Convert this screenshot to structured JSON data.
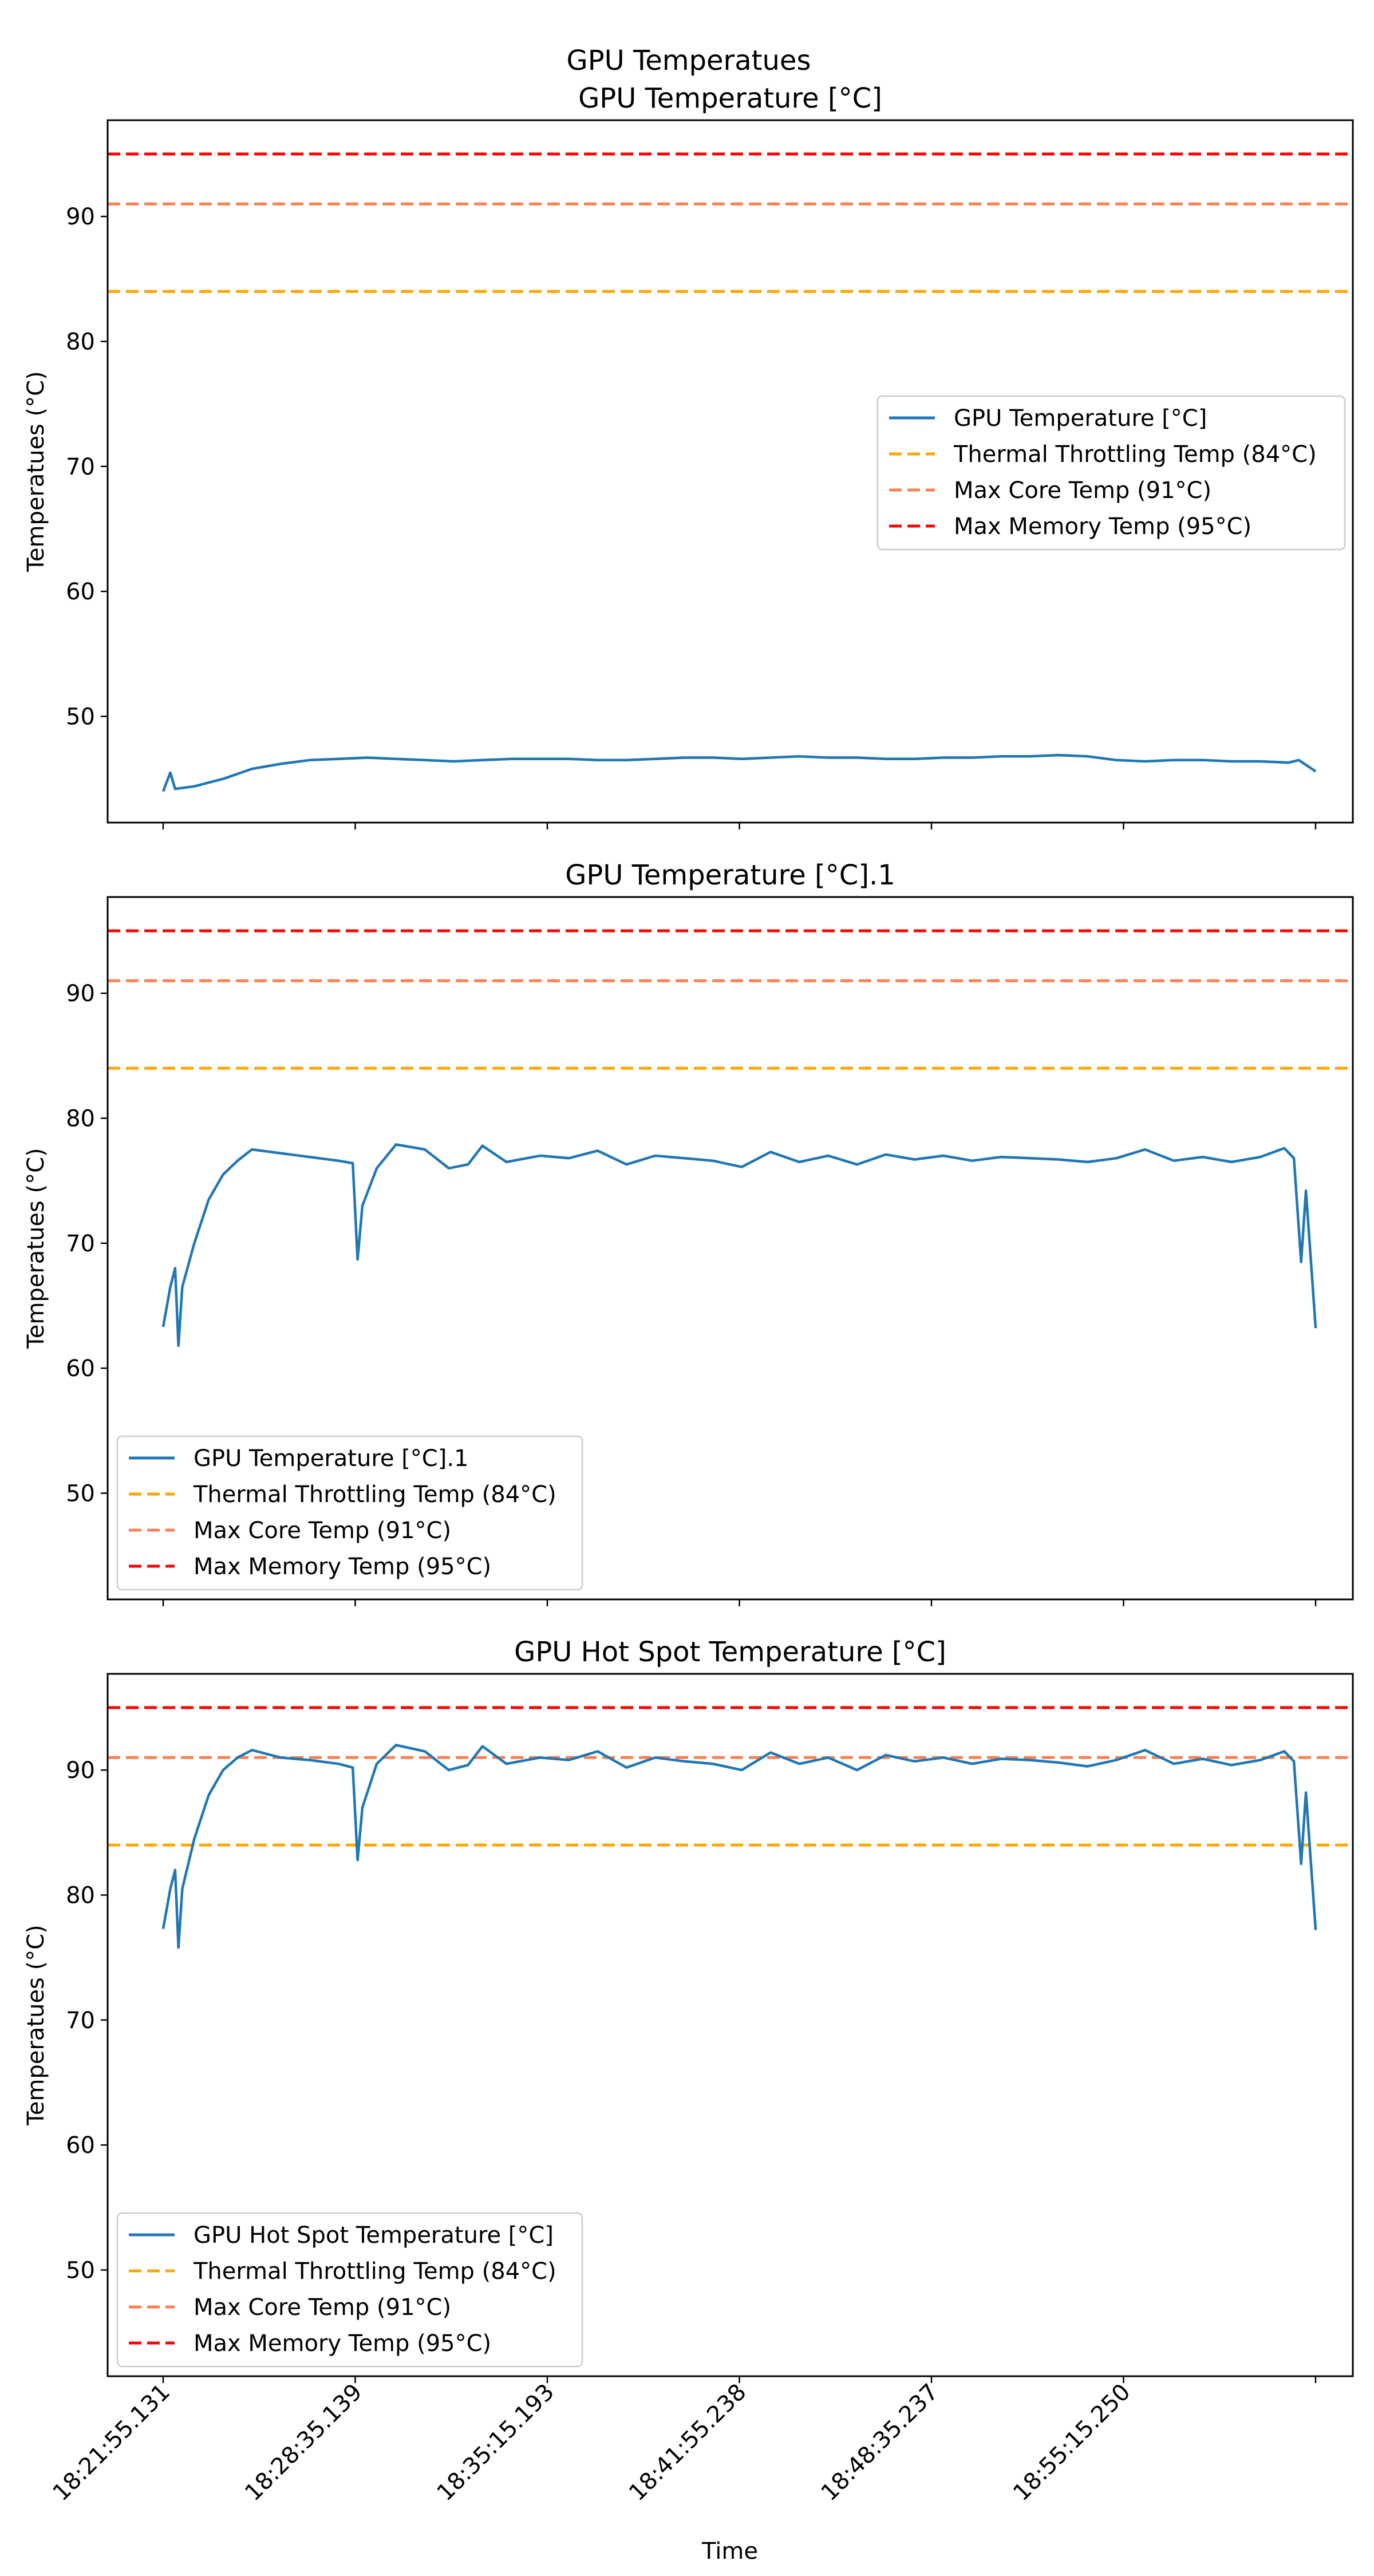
{
  "figure": {
    "suptitle": "GPU Temperatues",
    "xlabel": "Time",
    "ylabel": "Temperatues (°C)"
  },
  "colors": {
    "series": "#1f77b4",
    "throttle": "#ffa500",
    "core": "#ff7f50",
    "memory": "#ff0000"
  },
  "chart_data": [
    {
      "type": "line",
      "title": "GPU Temperature [°C]",
      "ylabel": "Temperatues (°C)",
      "xlabel": "",
      "x_range": [
        "18:21:55.131",
        "19:01:55.250"
      ],
      "x_ticks": [],
      "ylim": [
        41.5,
        97.7
      ],
      "y_ticks": [
        50,
        60,
        70,
        80,
        90
      ],
      "grid": false,
      "legend_position": "center-right",
      "series": [
        {
          "name": "GPU Temperature [°C]",
          "points": [
            [
              "18:21:55.131",
              44.0
            ],
            [
              "18:22:10.000",
              45.5
            ],
            [
              "18:22:20.000",
              44.2
            ],
            [
              "18:23:00.000",
              44.4
            ],
            [
              "18:24:00.000",
              45.0
            ],
            [
              "18:25:00.000",
              45.8
            ],
            [
              "18:26:00.000",
              46.2
            ],
            [
              "18:27:00.000",
              46.5
            ],
            [
              "18:28:00.000",
              46.6
            ],
            [
              "18:29:00.000",
              46.7
            ],
            [
              "18:30:00.000",
              46.6
            ],
            [
              "18:31:00.000",
              46.5
            ],
            [
              "18:32:00.000",
              46.4
            ],
            [
              "18:33:00.000",
              46.5
            ],
            [
              "18:34:00.000",
              46.6
            ],
            [
              "18:35:00.000",
              46.6
            ],
            [
              "18:36:00.000",
              46.6
            ],
            [
              "18:37:00.000",
              46.5
            ],
            [
              "18:38:00.000",
              46.5
            ],
            [
              "18:39:00.000",
              46.6
            ],
            [
              "18:40:00.000",
              46.7
            ],
            [
              "18:41:00.000",
              46.7
            ],
            [
              "18:42:00.000",
              46.6
            ],
            [
              "18:43:00.000",
              46.7
            ],
            [
              "18:44:00.000",
              46.8
            ],
            [
              "18:45:00.000",
              46.7
            ],
            [
              "18:46:00.000",
              46.7
            ],
            [
              "18:47:00.000",
              46.6
            ],
            [
              "18:48:00.000",
              46.6
            ],
            [
              "18:49:00.000",
              46.7
            ],
            [
              "18:50:00.000",
              46.7
            ],
            [
              "18:51:00.000",
              46.8
            ],
            [
              "18:52:00.000",
              46.8
            ],
            [
              "18:53:00.000",
              46.9
            ],
            [
              "18:54:00.000",
              46.8
            ],
            [
              "18:55:00.000",
              46.5
            ],
            [
              "18:56:00.000",
              46.4
            ],
            [
              "18:57:00.000",
              46.5
            ],
            [
              "18:58:00.000",
              46.5
            ],
            [
              "18:59:00.000",
              46.4
            ],
            [
              "19:00:00.000",
              46.4
            ],
            [
              "19:00:59.000",
              46.3
            ],
            [
              "19:01:20.000",
              46.5
            ],
            [
              "19:01:55.250",
              45.6
            ]
          ]
        },
        {
          "name": "Thermal Throttling Temp (84°C)",
          "constant": 84
        },
        {
          "name": "Max Core Temp (91°C)",
          "constant": 91
        },
        {
          "name": "Max Memory Temp (95°C)",
          "constant": 95
        }
      ]
    },
    {
      "type": "line",
      "title": "GPU Temperature [°C].1",
      "ylabel": "Temperatues (°C)",
      "xlabel": "",
      "x_range": [
        "18:21:55.131",
        "19:01:55.250"
      ],
      "x_ticks": [],
      "ylim": [
        41.5,
        97.7
      ],
      "y_ticks": [
        50,
        60,
        70,
        80,
        90
      ],
      "grid": false,
      "legend_position": "lower-left",
      "series": [
        {
          "name": "GPU Temperature [°C].1",
          "points": [
            [
              "18:21:55.131",
              63.3
            ],
            [
              "18:22:10.000",
              66.5
            ],
            [
              "18:22:20.000",
              68.0
            ],
            [
              "18:22:27.000",
              61.8
            ],
            [
              "18:22:35.000",
              66.5
            ],
            [
              "18:23:00.000",
              70.0
            ],
            [
              "18:23:30.000",
              73.5
            ],
            [
              "18:24:00.000",
              75.5
            ],
            [
              "18:24:30.000",
              76.6
            ],
            [
              "18:25:00.000",
              77.5
            ],
            [
              "18:26:00.000",
              77.2
            ],
            [
              "18:27:00.000",
              76.9
            ],
            [
              "18:28:00.000",
              76.6
            ],
            [
              "18:28:30.000",
              76.4
            ],
            [
              "18:28:40.000",
              68.7
            ],
            [
              "18:28:50.000",
              73.0
            ],
            [
              "18:29:20.000",
              76.0
            ],
            [
              "18:30:00.000",
              77.9
            ],
            [
              "18:31:00.000",
              77.5
            ],
            [
              "18:31:50.000",
              76.0
            ],
            [
              "18:32:30.000",
              76.3
            ],
            [
              "18:33:00.000",
              77.8
            ],
            [
              "18:33:50.000",
              76.5
            ],
            [
              "18:35:00.000",
              77.0
            ],
            [
              "18:36:00.000",
              76.8
            ],
            [
              "18:37:00.000",
              77.4
            ],
            [
              "18:38:00.000",
              76.3
            ],
            [
              "18:39:00.000",
              77.0
            ],
            [
              "18:40:00.000",
              76.8
            ],
            [
              "18:41:00.000",
              76.6
            ],
            [
              "18:42:00.000",
              76.1
            ],
            [
              "18:43:00.000",
              77.3
            ],
            [
              "18:44:00.000",
              76.5
            ],
            [
              "18:45:00.000",
              77.0
            ],
            [
              "18:46:00.000",
              76.3
            ],
            [
              "18:47:00.000",
              77.1
            ],
            [
              "18:48:00.000",
              76.7
            ],
            [
              "18:49:00.000",
              77.0
            ],
            [
              "18:50:00.000",
              76.6
            ],
            [
              "18:51:00.000",
              76.9
            ],
            [
              "18:52:00.000",
              76.8
            ],
            [
              "18:53:00.000",
              76.7
            ],
            [
              "18:54:00.000",
              76.5
            ],
            [
              "18:55:00.000",
              76.8
            ],
            [
              "18:56:00.000",
              77.5
            ],
            [
              "18:57:00.000",
              76.6
            ],
            [
              "18:58:00.000",
              76.9
            ],
            [
              "18:59:00.000",
              76.5
            ],
            [
              "19:00:00.000",
              76.9
            ],
            [
              "19:00:50.000",
              77.6
            ],
            [
              "19:01:10.000",
              76.8
            ],
            [
              "19:01:25.000",
              68.5
            ],
            [
              "19:01:35.000",
              74.2
            ],
            [
              "19:01:55.250",
              63.2
            ]
          ]
        },
        {
          "name": "Thermal Throttling Temp (84°C)",
          "constant": 84
        },
        {
          "name": "Max Core Temp (91°C)",
          "constant": 91
        },
        {
          "name": "Max Memory Temp (95°C)",
          "constant": 95
        }
      ]
    },
    {
      "type": "line",
      "title": "GPU Hot Spot Temperature [°C]",
      "ylabel": "Temperatues (°C)",
      "xlabel": "Time",
      "x_range": [
        "18:21:55.131",
        "19:01:55.250"
      ],
      "x_ticks": [
        "18:21:55.131",
        "18:28:35.139",
        "18:35:15.193",
        "18:41:55.238",
        "18:48:35.237",
        "18:55:15.250"
      ],
      "ylim": [
        41.5,
        97.7
      ],
      "y_ticks": [
        50,
        60,
        70,
        80,
        90
      ],
      "grid": false,
      "legend_position": "lower-left",
      "series": [
        {
          "name": "GPU Hot Spot Temperature [°C]",
          "points": [
            [
              "18:21:55.131",
              77.3
            ],
            [
              "18:22:10.000",
              80.5
            ],
            [
              "18:22:20.000",
              82.0
            ],
            [
              "18:22:27.000",
              75.8
            ],
            [
              "18:22:35.000",
              80.5
            ],
            [
              "18:23:00.000",
              84.5
            ],
            [
              "18:23:30.000",
              88.0
            ],
            [
              "18:24:00.000",
              90.0
            ],
            [
              "18:24:30.000",
              91.0
            ],
            [
              "18:25:00.000",
              91.6
            ],
            [
              "18:26:00.000",
              91.0
            ],
            [
              "18:27:00.000",
              90.8
            ],
            [
              "18:28:00.000",
              90.5
            ],
            [
              "18:28:30.000",
              90.2
            ],
            [
              "18:28:40.000",
              82.8
            ],
            [
              "18:28:50.000",
              87.0
            ],
            [
              "18:29:20.000",
              90.5
            ],
            [
              "18:30:00.000",
              92.0
            ],
            [
              "18:31:00.000",
              91.5
            ],
            [
              "18:31:50.000",
              90.0
            ],
            [
              "18:32:30.000",
              90.4
            ],
            [
              "18:33:00.000",
              91.9
            ],
            [
              "18:33:50.000",
              90.5
            ],
            [
              "18:35:00.000",
              91.0
            ],
            [
              "18:36:00.000",
              90.8
            ],
            [
              "18:37:00.000",
              91.5
            ],
            [
              "18:38:00.000",
              90.2
            ],
            [
              "18:39:00.000",
              91.0
            ],
            [
              "18:40:00.000",
              90.7
            ],
            [
              "18:41:00.000",
              90.5
            ],
            [
              "18:42:00.000",
              90.0
            ],
            [
              "18:43:00.000",
              91.4
            ],
            [
              "18:44:00.000",
              90.5
            ],
            [
              "18:45:00.000",
              91.0
            ],
            [
              "18:46:00.000",
              90.0
            ],
            [
              "18:47:00.000",
              91.2
            ],
            [
              "18:48:00.000",
              90.7
            ],
            [
              "18:49:00.000",
              91.0
            ],
            [
              "18:50:00.000",
              90.5
            ],
            [
              "18:51:00.000",
              90.9
            ],
            [
              "18:52:00.000",
              90.8
            ],
            [
              "18:53:00.000",
              90.6
            ],
            [
              "18:54:00.000",
              90.3
            ],
            [
              "18:55:00.000",
              90.8
            ],
            [
              "18:56:00.000",
              91.6
            ],
            [
              "18:57:00.000",
              90.5
            ],
            [
              "18:58:00.000",
              90.9
            ],
            [
              "18:59:00.000",
              90.4
            ],
            [
              "19:00:00.000",
              90.8
            ],
            [
              "19:00:50.000",
              91.5
            ],
            [
              "19:01:10.000",
              90.7
            ],
            [
              "19:01:25.000",
              82.5
            ],
            [
              "19:01:35.000",
              88.2
            ],
            [
              "19:01:55.250",
              77.2
            ]
          ]
        },
        {
          "name": "Thermal Throttling Temp (84°C)",
          "constant": 84
        },
        {
          "name": "Max Core Temp (91°C)",
          "constant": 91
        },
        {
          "name": "Max Memory Temp (95°C)",
          "constant": 95
        }
      ]
    }
  ]
}
